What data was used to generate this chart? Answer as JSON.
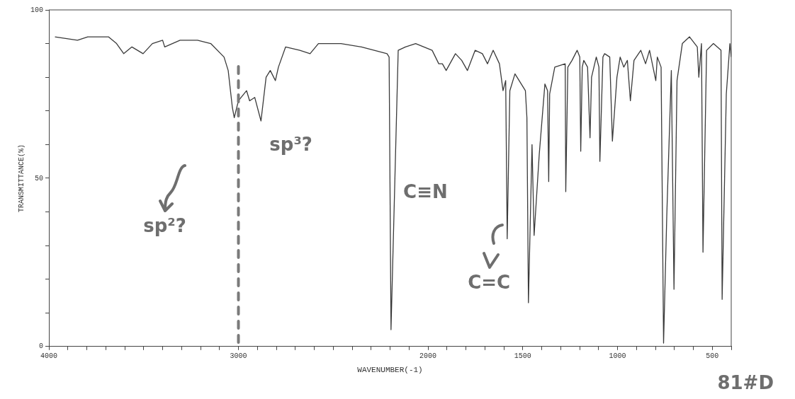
{
  "chart_data": {
    "type": "line",
    "xlabel": "WAVENUMBER(-1)",
    "ylabel": "TRANSMITTANCE(%)",
    "xlim": [
      4000,
      400
    ],
    "ylim": [
      0,
      100
    ],
    "xticks": [
      4000,
      {
        "value": 3900,
        "label": null
      },
      {
        "value": 3800,
        "label": null
      },
      {
        "value": 3700,
        "label": null
      },
      {
        "value": 3600,
        "label": null
      },
      {
        "value": 3500,
        "label": null
      },
      {
        "value": 3400,
        "label": null
      },
      {
        "value": 3300,
        "label": null
      },
      {
        "value": 3200,
        "label": null
      },
      {
        "value": 3100,
        "label": null
      },
      3000,
      {
        "value": 2900,
        "label": null
      },
      {
        "value": 2800,
        "label": null
      },
      {
        "value": 2700,
        "label": null
      },
      {
        "value": 2600,
        "label": null
      },
      {
        "value": 2500,
        "label": null
      },
      {
        "value": 2400,
        "label": null
      },
      {
        "value": 2300,
        "label": null
      },
      {
        "value": 2200,
        "label": null
      },
      {
        "value": 2100,
        "label": null
      },
      2000,
      {
        "value": 1900,
        "label": null
      },
      {
        "value": 1800,
        "label": null
      },
      {
        "value": 1700,
        "label": null
      },
      {
        "value": 1600,
        "label": null
      },
      1500,
      {
        "value": 1400,
        "label": null
      },
      {
        "value": 1300,
        "label": null
      },
      {
        "value": 1200,
        "label": null
      },
      {
        "value": 1100,
        "label": null
      },
      1000,
      {
        "value": 900,
        "label": null
      },
      {
        "value": 800,
        "label": null
      },
      {
        "value": 700,
        "label": null
      },
      {
        "value": 600,
        "label": null
      },
      500,
      {
        "value": 400,
        "label": null
      }
    ],
    "yticks": [
      0,
      {
        "value": 10,
        "label": null
      },
      {
        "value": 20,
        "label": null
      },
      {
        "value": 30,
        "label": null
      },
      {
        "value": 40,
        "label": null
      },
      50,
      {
        "value": 60,
        "label": null
      },
      {
        "value": 70,
        "label": null
      },
      {
        "value": 80,
        "label": null
      },
      {
        "value": 90,
        "label": null
      },
      100
    ],
    "grid": false,
    "legend": false,
    "marker": "none",
    "series": [
      {
        "color": "#3a3a3a",
        "x": [
          3968,
          3849,
          3795,
          3686,
          3643,
          3605,
          3562,
          3503,
          3454,
          3400,
          3389,
          3308,
          3216,
          3146,
          3076,
          3054,
          3032,
          3022,
          3000,
          2957,
          2941,
          2914,
          2881,
          2854,
          2832,
          2805,
          2789,
          2751,
          2676,
          2622,
          2578,
          2459,
          2351,
          2216,
          2205,
          2195,
          2157,
          2119,
          2065,
          1978,
          1943,
          1924,
          1904,
          1855,
          1822,
          1792,
          1751,
          1713,
          1686,
          1656,
          1623,
          1604,
          1590,
          1582,
          1568,
          1541,
          1486,
          1478,
          1470,
          1451,
          1440,
          1413,
          1383,
          1369,
          1363,
          1358,
          1331,
          1276,
          1273,
          1262,
          1240,
          1213,
          1199,
          1194,
          1186,
          1178,
          1158,
          1145,
          1137,
          1112,
          1098,
          1093,
          1077,
          1068,
          1041,
          1027,
          1003,
          986,
          967,
          948,
          932,
          913,
          877,
          852,
          831,
          798,
          790,
          770,
          757,
          740,
          716,
          702,
          686,
          658,
          620,
          579,
          571,
          557,
          549,
          530,
          494,
          454,
          448,
          426,
          407,
          400
        ],
        "values": [
          92,
          91,
          92,
          92,
          90,
          87,
          89,
          87,
          90,
          91,
          89,
          91,
          91,
          90,
          86,
          82,
          71,
          68,
          73,
          76,
          73,
          74,
          67,
          80,
          82,
          79,
          83,
          89,
          88,
          87,
          90,
          90,
          89,
          87,
          86,
          5,
          88,
          89,
          90,
          88,
          84,
          84,
          82,
          87,
          85,
          82,
          88,
          87,
          84,
          88,
          84,
          76,
          79,
          32,
          76,
          81,
          76,
          68,
          13,
          60,
          33,
          57,
          78,
          76,
          49,
          75,
          83,
          84,
          46,
          83,
          85,
          88,
          86,
          58,
          83,
          85,
          83,
          62,
          80,
          86,
          83,
          55,
          86,
          87,
          86,
          61,
          80,
          86,
          83,
          85,
          73,
          85,
          88,
          84,
          88,
          79,
          86,
          83,
          1,
          39,
          82,
          17,
          79,
          90,
          92,
          89,
          80,
          90,
          28,
          88,
          90,
          88,
          14,
          75,
          90,
          86
        ]
      }
    ],
    "ref_lines": [
      {
        "axis": "x",
        "value": 3000,
        "color": "#7a7a7a",
        "line_style": "dashed"
      }
    ],
    "annotations": [
      "sp³?",
      "sp²?",
      "C≡N",
      "C=C",
      "81#D"
    ]
  }
}
